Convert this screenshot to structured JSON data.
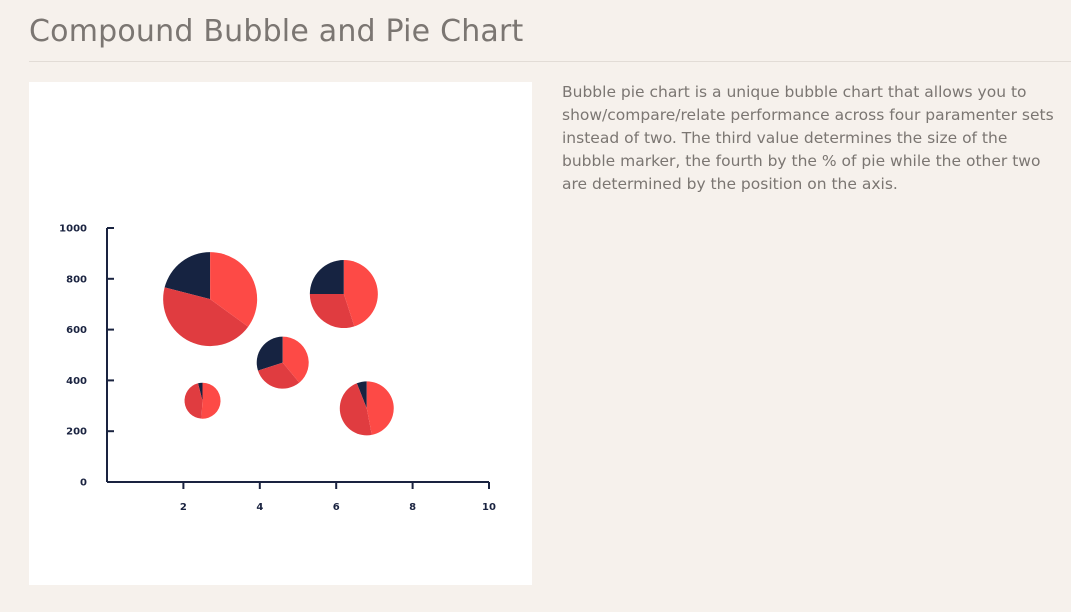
{
  "page": {
    "title": "Compound Bubble and Pie Chart",
    "description": "Bubble pie chart is a unique bubble chart that allows you to show/compare/relate performance across four paramenter sets instead of two. The third value determines the size of the bubble marker, the fourth by the % of pie while the other two are determined by the position on the axis."
  },
  "colors": {
    "navy": "#162341",
    "red": "#e03c40",
    "coral": "#fd4a46",
    "axis": "#1a2340",
    "background": "#f6f1ec",
    "card": "#ffffff"
  },
  "chart_data": {
    "type": "bubble-pie",
    "title": "",
    "xlabel": "",
    "ylabel": "",
    "xlim": [
      0,
      10
    ],
    "ylim": [
      0,
      1000
    ],
    "x_ticks": [
      2,
      4,
      6,
      8,
      10
    ],
    "y_ticks": [
      0,
      200,
      400,
      600,
      800,
      1000
    ],
    "grid": false,
    "series_colors": [
      "#162341",
      "#e03c40",
      "#fd4a46"
    ],
    "bubbles": [
      {
        "x": 2.7,
        "y": 720,
        "size": 47,
        "slices": [
          21,
          44,
          35
        ]
      },
      {
        "x": 2.5,
        "y": 320,
        "size": 18,
        "slices": [
          4,
          45,
          51
        ]
      },
      {
        "x": 4.6,
        "y": 470,
        "size": 26,
        "slices": [
          30,
          31,
          39
        ]
      },
      {
        "x": 6.2,
        "y": 740,
        "size": 34,
        "slices": [
          25,
          30,
          45
        ]
      },
      {
        "x": 6.8,
        "y": 290,
        "size": 27,
        "slices": [
          6,
          47,
          47
        ]
      }
    ]
  }
}
